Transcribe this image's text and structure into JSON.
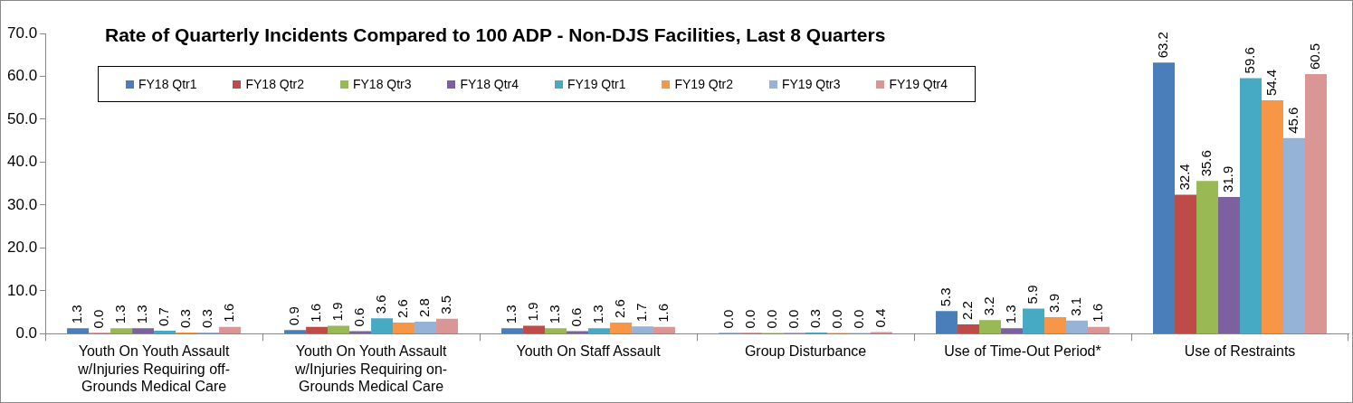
{
  "chart_data": {
    "type": "bar",
    "title": "Rate of Quarterly Incidents Compared to 100 ADP - Non-DJS Facilities, Last 8 Quarters",
    "categories": [
      "Youth On Youth Assault w/Injuries Requiring off-Grounds Medical Care",
      "Youth On Youth Assault w/Injuries Requiring on-Grounds Medical Care",
      "Youth On Staff Assault",
      "Group Disturbance",
      "Use of Time-Out Period*",
      "Use of Restraints"
    ],
    "series": [
      {
        "name": "FY18 Qtr1",
        "color": "#4a7ebb",
        "values": [
          1.3,
          0.9,
          1.3,
          0.0,
          5.3,
          63.2
        ],
        "value_labels": [
          "1.3",
          "0.9",
          "1.3",
          "0.0",
          "5.3",
          "63.2"
        ]
      },
      {
        "name": "FY18 Qtr2",
        "color": "#be4b48",
        "values": [
          0.0,
          1.6,
          1.9,
          0.0,
          2.2,
          32.4
        ],
        "value_labels": [
          "0.0",
          "1.6",
          "1.9",
          "0.0",
          "2.2",
          "32.4"
        ]
      },
      {
        "name": "FY18 Qtr3",
        "color": "#98b954",
        "values": [
          1.3,
          1.9,
          1.3,
          0.0,
          3.2,
          35.6
        ],
        "value_labels": [
          "1.3",
          "1.9",
          "1.3",
          "0.0",
          "3.2",
          "35.6"
        ]
      },
      {
        "name": "FY18 Qtr4",
        "color": "#7d60a0",
        "values": [
          1.3,
          0.6,
          0.6,
          0.0,
          1.3,
          31.9
        ],
        "value_labels": [
          "1.3",
          "0.6",
          "0.6",
          "0.0",
          "1.3",
          "31.9"
        ]
      },
      {
        "name": "FY19 Qtr1",
        "color": "#46aac5",
        "values": [
          0.7,
          3.6,
          1.3,
          0.3,
          5.9,
          59.6
        ],
        "value_labels": [
          "0.7",
          "3.6",
          "1.3",
          "0.3",
          "5.9",
          "59.6"
        ]
      },
      {
        "name": "FY19 Qtr2",
        "color": "#f79646",
        "values": [
          0.3,
          2.6,
          2.6,
          0.0,
          3.9,
          54.4
        ],
        "value_labels": [
          "0.3",
          "2.6",
          "2.6",
          "0.0",
          "3.9",
          "54.4"
        ]
      },
      {
        "name": "FY19 Qtr3",
        "color": "#95b3d7",
        "values": [
          0.3,
          2.8,
          1.7,
          0.0,
          3.1,
          45.6
        ],
        "value_labels": [
          "0.3",
          "2.8",
          "1.7",
          "0.0",
          "3.1",
          "45.6"
        ]
      },
      {
        "name": "FY19 Qtr4",
        "color": "#d99694",
        "values": [
          1.6,
          3.5,
          1.6,
          0.4,
          1.6,
          60.5
        ],
        "value_labels": [
          "1.6",
          "3.5",
          "1.6",
          "0.4",
          "1.6",
          "60.5"
        ]
      }
    ],
    "ylim": [
      0,
      70
    ],
    "yticks": [
      {
        "value": 0,
        "label": "0.0"
      },
      {
        "value": 10,
        "label": "10.0"
      },
      {
        "value": 20,
        "label": "20.0"
      },
      {
        "value": 30,
        "label": "30.0"
      },
      {
        "value": 40,
        "label": "40.0"
      },
      {
        "value": 50,
        "label": "50.0"
      },
      {
        "value": 60,
        "label": "60.0"
      },
      {
        "value": 70,
        "label": "70.0"
      }
    ],
    "grid": false,
    "legend": "top left"
  }
}
